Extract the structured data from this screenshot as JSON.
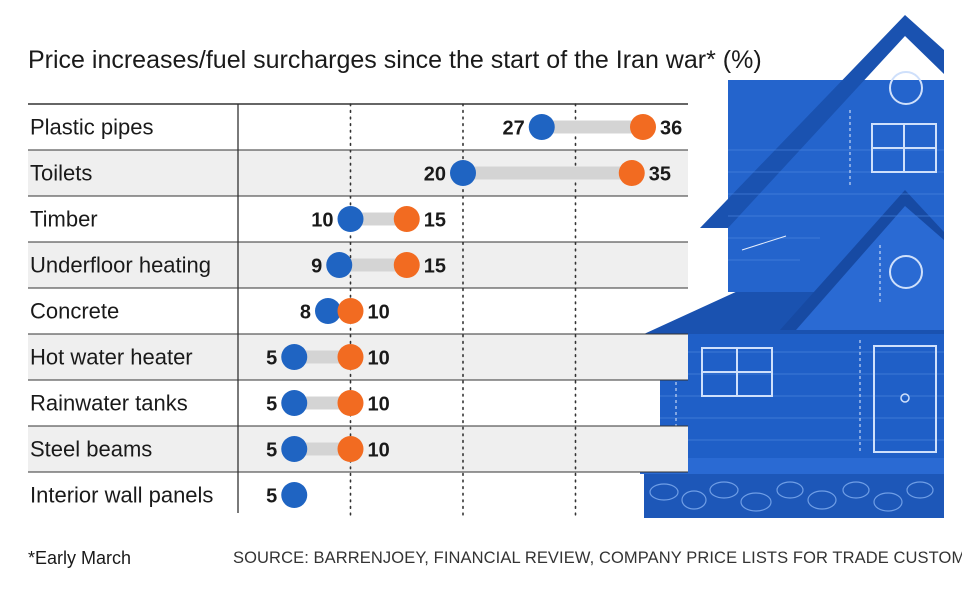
{
  "chart_data": {
    "type": "dumbbell",
    "title": "Price increases/fuel surcharges since the start of the Iran war* (%)",
    "categories": [
      "Plastic pipes",
      "Toilets",
      "Timber",
      "Underfloor heating",
      "Concrete",
      "Hot water heater",
      "Rainwater tanks",
      "Steel beams",
      "Interior wall panels"
    ],
    "series": [
      {
        "name": "start",
        "color": "#1f64c2",
        "values": [
          27,
          20,
          10,
          9,
          8,
          5,
          5,
          5,
          5
        ]
      },
      {
        "name": "end",
        "color": "#f26b21",
        "values": [
          36,
          35,
          15,
          15,
          10,
          10,
          10,
          10,
          null
        ]
      }
    ],
    "labels": {
      "start": [
        "27",
        "20",
        "10",
        "9",
        "8",
        "5",
        "5",
        "5",
        "5"
      ],
      "end": [
        "36",
        "35",
        "15",
        "15",
        "10",
        "10",
        "10",
        "10",
        ""
      ]
    },
    "xlim": [
      0,
      40
    ],
    "gridlines": [
      10,
      20,
      30
    ],
    "footnote": "*Early March",
    "source": "SOURCE: BARRENJOEY, FINANCIAL REVIEW, COMPANY PRICE LISTS FOR TRADE CUSTOMERS"
  },
  "colors": {
    "blue": "#1f64c2",
    "orange": "#f26b21",
    "connector": "#d4d4d4",
    "band": "#efefef",
    "house": "#1f5fc7"
  }
}
